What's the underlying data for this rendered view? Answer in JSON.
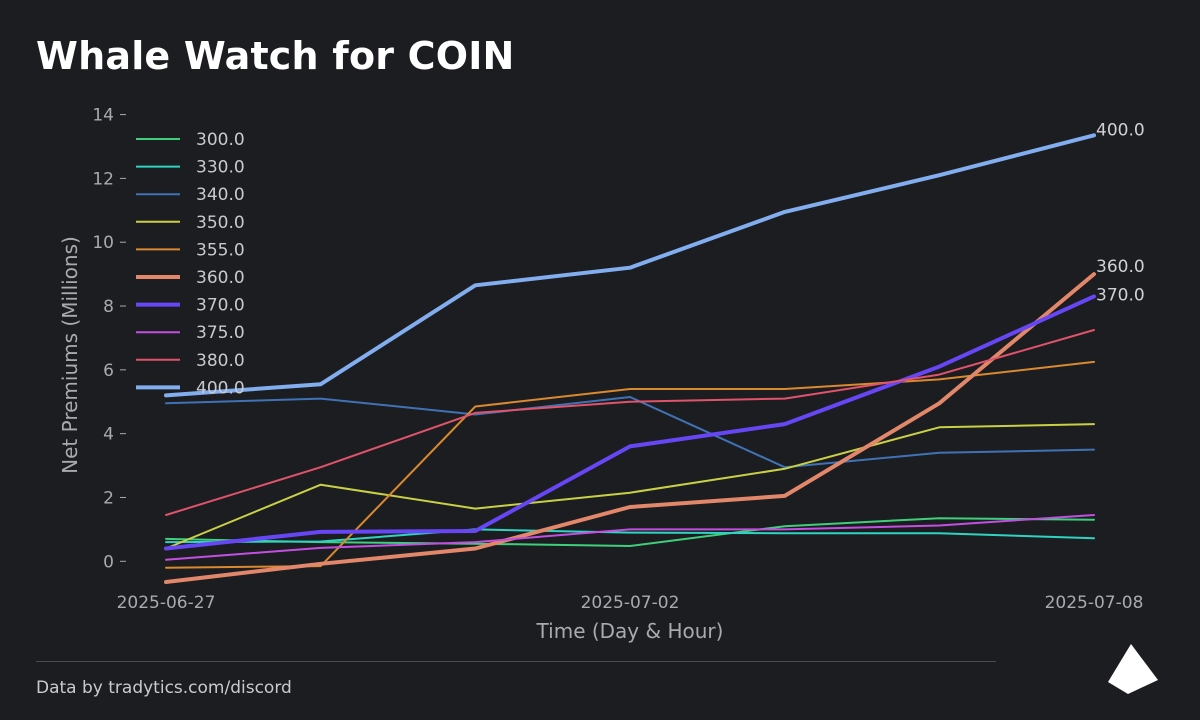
{
  "title": "Whale Watch for COIN",
  "footer": "Data by tradytics.com/discord",
  "chart_data": {
    "type": "line",
    "xlabel": "Time (Day & Hour)",
    "ylabel": "Net Premiums (Millions)",
    "ylim": [
      -0.9,
      14.3
    ],
    "yticks": [
      0,
      2,
      4,
      6,
      8,
      10,
      12,
      14
    ],
    "x_tick_labels": [
      "2025-06-27",
      "2025-07-02",
      "2025-07-08"
    ],
    "x_tick_positions": [
      0,
      3,
      6
    ],
    "x": [
      0,
      1,
      2,
      3,
      4,
      5,
      6
    ],
    "grid": false,
    "legend": "top-left",
    "end_labels": [
      "400.0",
      "360.0",
      "370.0"
    ],
    "series": [
      {
        "name": "300.0",
        "color": "#3fcf7a",
        "width": 2,
        "values": [
          0.7,
          0.6,
          0.55,
          0.48,
          1.1,
          1.35,
          1.3
        ]
      },
      {
        "name": "330.0",
        "color": "#2ed3c2",
        "width": 2,
        "values": [
          0.6,
          0.62,
          1.0,
          0.9,
          0.88,
          0.88,
          0.72
        ]
      },
      {
        "name": "340.0",
        "color": "#3f72b5",
        "width": 2,
        "values": [
          4.95,
          5.1,
          4.6,
          5.15,
          2.95,
          3.4,
          3.5
        ]
      },
      {
        "name": "350.0",
        "color": "#c9d045",
        "width": 2,
        "values": [
          0.4,
          2.4,
          1.65,
          2.15,
          2.9,
          4.2,
          4.3
        ]
      },
      {
        "name": "355.0",
        "color": "#d9892f",
        "width": 2,
        "values": [
          -0.2,
          -0.15,
          4.85,
          5.4,
          5.4,
          5.7,
          6.25
        ]
      },
      {
        "name": "360.0",
        "color": "#e2876a",
        "width": 4,
        "values": [
          -0.65,
          -0.08,
          0.4,
          1.7,
          2.05,
          4.95,
          9.0
        ]
      },
      {
        "name": "370.0",
        "color": "#6747f5",
        "width": 4,
        "values": [
          0.4,
          0.92,
          0.95,
          3.6,
          4.3,
          6.1,
          8.3
        ]
      },
      {
        "name": "375.0",
        "color": "#c150e0",
        "width": 2,
        "values": [
          0.05,
          0.42,
          0.6,
          1.0,
          1.0,
          1.12,
          1.45
        ]
      },
      {
        "name": "380.0",
        "color": "#e0536b",
        "width": 2,
        "values": [
          1.45,
          2.95,
          4.65,
          5.0,
          5.1,
          5.85,
          7.25
        ]
      },
      {
        "name": "400.0",
        "color": "#82aef0",
        "width": 4,
        "values": [
          5.2,
          5.55,
          8.65,
          9.2,
          10.95,
          12.1,
          13.35
        ]
      }
    ]
  }
}
